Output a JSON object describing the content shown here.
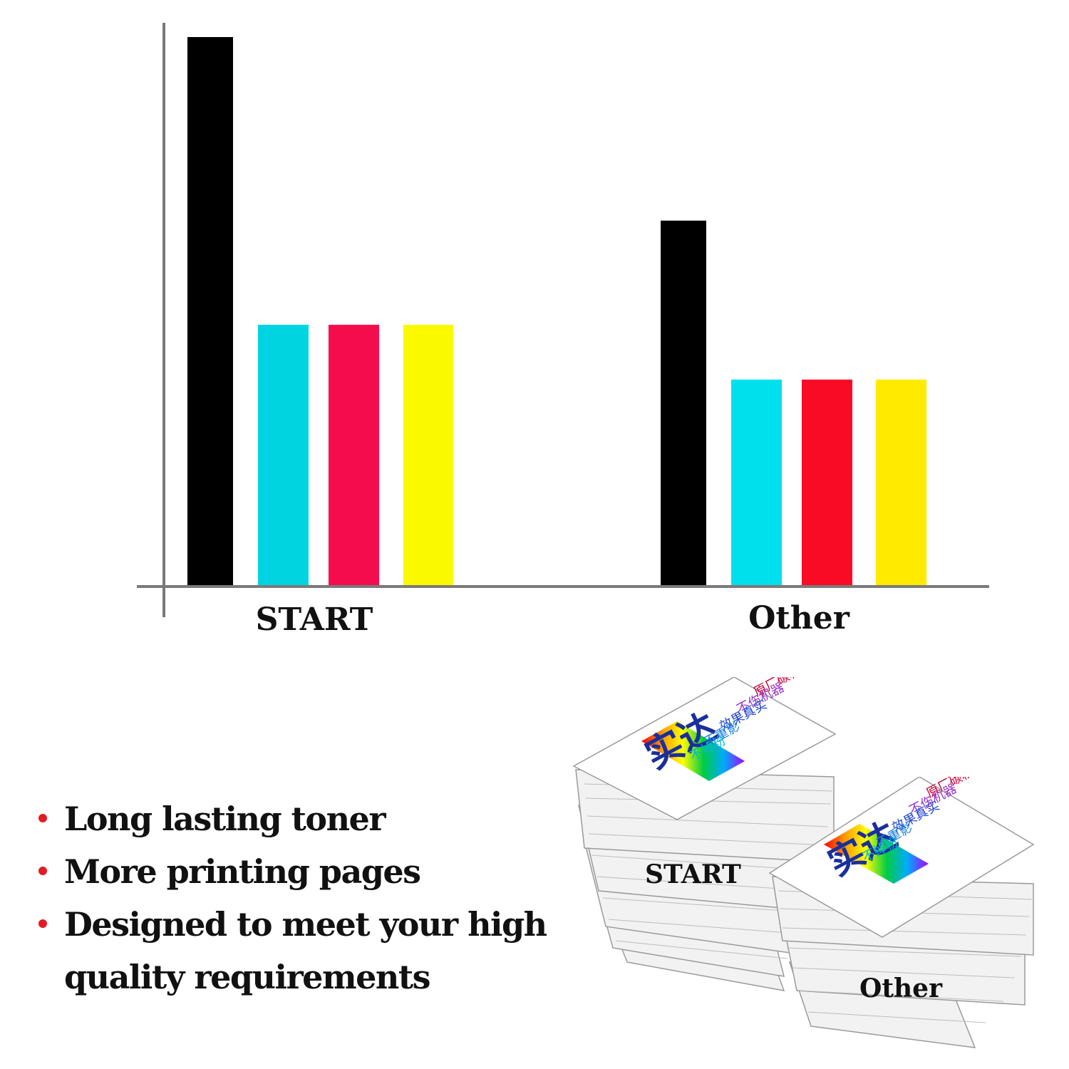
{
  "chart_data": {
    "type": "bar",
    "categories": [
      "START",
      "Other"
    ],
    "series": [
      {
        "color": "#000000",
        "values": [
          100,
          66.5
        ]
      },
      {
        "color": "#00d4e0",
        "values": [
          47.5,
          37.5
        ]
      },
      {
        "color": "#f50c4c",
        "values": [
          47.5,
          37.5
        ]
      },
      {
        "color": "#fbf900",
        "values": [
          47.5,
          37.5
        ]
      }
    ],
    "other_series_colors": [
      "#000000",
      "#00e0ec",
      "#fa0b25",
      "#ffea00"
    ],
    "ylim": [
      0,
      100
    ],
    "grid": false,
    "title": "",
    "xlabel": "",
    "ylabel": ""
  },
  "bullets": [
    "Long lasting toner",
    "More printing pages",
    "Designed to meet your high quality requirements"
  ],
  "illustration": {
    "labels": [
      "START",
      "Other"
    ],
    "sheet_texts": [
      "原厂碳粉",
      "不伤机器",
      "效果真实",
      "不重影",
      "不掉粉",
      "实达"
    ],
    "icon": "paper-stack-icon"
  }
}
